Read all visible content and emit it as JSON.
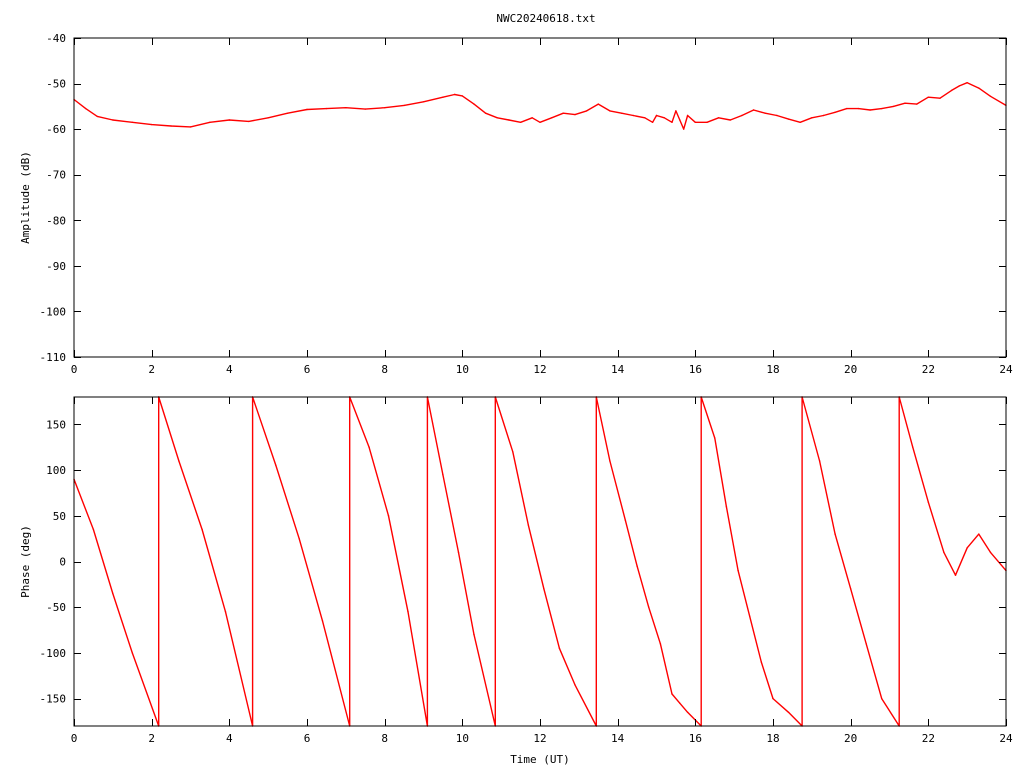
{
  "chart_data": [
    {
      "type": "line",
      "title": "NWC20240618.txt",
      "xlabel": "",
      "ylabel": "Amplitude (dB)",
      "xlim": [
        0,
        24
      ],
      "ylim": [
        -110,
        -40
      ],
      "x_ticks": [
        0,
        2,
        4,
        6,
        8,
        10,
        12,
        14,
        16,
        18,
        20,
        22,
        24
      ],
      "y_ticks": [
        -110,
        -100,
        -90,
        -80,
        -70,
        -60,
        -50,
        -40
      ],
      "color": "#ff0000",
      "series": [
        {
          "x": [
            0,
            0.3,
            0.6,
            1.0,
            1.5,
            2.0,
            2.5,
            3.0,
            3.5,
            4.0,
            4.5,
            5.0,
            5.5,
            6.0,
            6.5,
            7.0,
            7.5,
            8.0,
            8.5,
            9.0,
            9.5,
            9.8,
            10.0,
            10.3,
            10.6,
            10.9,
            11.2,
            11.5,
            11.8,
            12.0,
            12.3,
            12.6,
            12.9,
            13.2,
            13.5,
            13.8,
            14.1,
            14.4,
            14.7,
            14.9,
            15.0,
            15.2,
            15.4,
            15.5,
            15.6,
            15.7,
            15.8,
            16.0,
            16.3,
            16.6,
            16.9,
            17.2,
            17.5,
            17.8,
            18.1,
            18.4,
            18.7,
            19.0,
            19.3,
            19.6,
            19.9,
            20.2,
            20.5,
            20.8,
            21.1,
            21.4,
            21.7,
            22.0,
            22.3,
            22.6,
            22.8,
            23.0,
            23.3,
            23.6,
            24.0
          ],
          "y": [
            -53.5,
            -55.5,
            -57.2,
            -58.0,
            -58.5,
            -59.0,
            -59.3,
            -59.5,
            -58.5,
            -58.0,
            -58.3,
            -57.5,
            -56.5,
            -55.7,
            -55.5,
            -55.3,
            -55.6,
            -55.3,
            -54.8,
            -54.0,
            -53.0,
            -52.4,
            -52.7,
            -54.5,
            -56.5,
            -57.5,
            -58.0,
            -58.5,
            -57.5,
            -58.5,
            -57.5,
            -56.5,
            -56.8,
            -56.0,
            -54.5,
            -56.0,
            -56.5,
            -57.0,
            -57.5,
            -58.5,
            -57.0,
            -57.5,
            -58.5,
            -56.0,
            -58.0,
            -60.0,
            -57.0,
            -58.5,
            -58.5,
            -57.5,
            -58.0,
            -57.0,
            -55.8,
            -56.5,
            -57.0,
            -57.8,
            -58.5,
            -57.5,
            -57.0,
            -56.3,
            -55.5,
            -55.5,
            -55.8,
            -55.5,
            -55.0,
            -54.3,
            -54.5,
            -53.0,
            -53.2,
            -51.5,
            -50.5,
            -49.8,
            -51.0,
            -52.8,
            -54.8
          ]
        }
      ]
    },
    {
      "type": "line",
      "title": "",
      "xlabel": "Time (UT)",
      "ylabel": "Phase (deg)",
      "xlim": [
        0,
        24
      ],
      "ylim": [
        -180,
        180
      ],
      "x_ticks": [
        0,
        2,
        4,
        6,
        8,
        10,
        12,
        14,
        16,
        18,
        20,
        22,
        24
      ],
      "y_ticks": [
        -150,
        -100,
        -50,
        0,
        50,
        100,
        150
      ],
      "color": "#ff0000",
      "series": [
        {
          "x": [
            0,
            0.5,
            1.0,
            1.5,
            2.18,
            2.18,
            2.7,
            3.3,
            3.9,
            4.6,
            4.6,
            5.2,
            5.8,
            6.4,
            7.1,
            7.1,
            7.6,
            8.1,
            8.6,
            9.1,
            9.1,
            9.5,
            9.9,
            10.3,
            10.85,
            10.85,
            11.3,
            11.7,
            12.1,
            12.5,
            12.9,
            13.45,
            13.45,
            13.8,
            14.2,
            14.5,
            14.8,
            15.1,
            15.4,
            15.6,
            15.8,
            16.15,
            16.15,
            16.5,
            16.8,
            17.1,
            17.4,
            17.7,
            18.0,
            18.4,
            18.75,
            18.75,
            19.2,
            19.6,
            20.0,
            20.4,
            20.8,
            21.25,
            21.25,
            21.6,
            22.0,
            22.4,
            22.7,
            23.0,
            23.3,
            23.6,
            24.0
          ],
          "y": [
            90,
            35,
            -35,
            -100,
            -180,
            180,
            110,
            35,
            -55,
            -180,
            180,
            105,
            25,
            -65,
            -180,
            180,
            125,
            50,
            -55,
            -180,
            180,
            95,
            10,
            -80,
            -180,
            180,
            120,
            40,
            -30,
            -95,
            -135,
            -180,
            180,
            110,
            45,
            -5,
            -50,
            -90,
            -145,
            -155,
            -165,
            -180,
            180,
            135,
            60,
            -10,
            -60,
            -110,
            -150,
            -165,
            -180,
            180,
            110,
            30,
            -30,
            -90,
            -150,
            -180,
            180,
            125,
            65,
            10,
            -15,
            15,
            30,
            10,
            -10
          ]
        }
      ]
    }
  ]
}
